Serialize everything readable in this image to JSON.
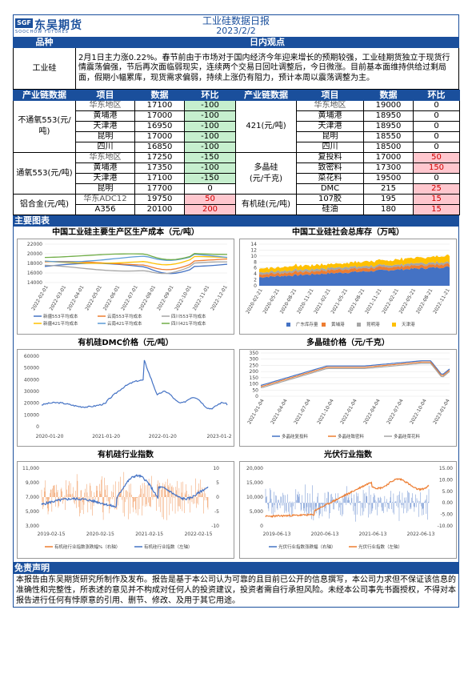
{
  "header": {
    "logo_mark": "SGF",
    "logo_cn": "东吴期货",
    "logo_en": "SOOCHOW FUTURES",
    "title": "工业硅数据日报",
    "date": "2023/2/2"
  },
  "section1": {
    "col1": "品种",
    "col2": "日内观点"
  },
  "summary": {
    "product": "工业硅",
    "text": "2月1日主力涨0.22%。春节前由于市场对于国内经济今年迎来增长的预期较强，工业硅期货独立于现货行情震荡偏强，节后再次面临弱现实，连续两个交易日回吐调整后，今日微涨。目前基本面维持供给过剩局面，假期小幅累库，现货需求偏弱，持续上涨仍有阻力，预计本周以震荡调整为主。"
  },
  "chain_header": [
    "产业链数据",
    "项目",
    "数据",
    "环比",
    "产业链数据",
    "项目",
    "数据",
    "环比"
  ],
  "left_groups": [
    {
      "name": "不通氧553(元/吨)",
      "rows": [
        {
          "item": "华东地区",
          "value": "17100",
          "change": "-100",
          "style": "green"
        },
        {
          "item": "黄埔港",
          "value": "17000",
          "change": "-100",
          "style": "green"
        },
        {
          "item": "天津港",
          "value": "16950",
          "change": "-100",
          "style": "green"
        },
        {
          "item": "昆明",
          "value": "17000",
          "change": "-100",
          "style": "green"
        },
        {
          "item": "四川",
          "value": "16850",
          "change": "-100",
          "style": "green"
        }
      ]
    },
    {
      "name": "通氧553(元/吨)",
      "rows": [
        {
          "item": "华东地区",
          "value": "17250",
          "change": "-150",
          "style": "green"
        },
        {
          "item": "黄埔港",
          "value": "17350",
          "change": "-100",
          "style": "green"
        },
        {
          "item": "天津港",
          "value": "17100",
          "change": "-150",
          "style": "green"
        },
        {
          "item": "昆明",
          "value": "17700",
          "change": "0",
          "style": ""
        }
      ]
    },
    {
      "name": "铝合金(元/吨)",
      "rows": [
        {
          "item": "华东ADC12",
          "value": "19750",
          "change": "50",
          "style": "red"
        },
        {
          "item": "A356",
          "value": "20100",
          "change": "200",
          "style": "red"
        }
      ]
    }
  ],
  "right_groups": [
    {
      "name": "421(元/吨)",
      "rows": [
        {
          "item": "华东地区",
          "value": "19000",
          "change": "0",
          "style": ""
        },
        {
          "item": "黄埔港",
          "value": "18950",
          "change": "0",
          "style": ""
        },
        {
          "item": "天津港",
          "value": "18950",
          "change": "0",
          "style": ""
        },
        {
          "item": "昆明",
          "value": "18550",
          "change": "0",
          "style": ""
        },
        {
          "item": "四川",
          "value": "18500",
          "change": "0",
          "style": ""
        }
      ]
    },
    {
      "name": "多晶硅\n(元/千克)",
      "rows": [
        {
          "item": "复投料",
          "value": "17000",
          "change": "50",
          "style": "red"
        },
        {
          "item": "致密料",
          "value": "17300",
          "change": "150",
          "style": "red"
        },
        {
          "item": "菜花料",
          "value": "19500",
          "change": "0",
          "style": ""
        },
        {
          "item": "DMC",
          "value": "215",
          "change": "25",
          "style": "red"
        }
      ]
    },
    {
      "name": "有机硅(元/吨)",
      "rows": [
        {
          "item": "107胶",
          "value": "195",
          "change": "15",
          "style": "red"
        },
        {
          "item": "硅油",
          "value": "180",
          "change": "15",
          "style": "red"
        }
      ]
    }
  ],
  "charts_section": "主要图表",
  "charts": [
    {
      "title": "中国工业硅主要生产区生产成本（元/吨）",
      "y_ticks": [
        "22000",
        "20000",
        "18000",
        "16000",
        "14000"
      ],
      "x_ticks": [
        "2022-02-01",
        "2022-03-01",
        "2022-04-01",
        "2022-05-01",
        "2022-06-01",
        "2022-07-01",
        "2022-08-01",
        "2022-09-01",
        "2022-10-01",
        "2022-11-01",
        "2022-12-01"
      ],
      "legend": [
        "新疆553平均成本",
        "云南553平均成本",
        "四川553平均成本",
        "新疆421平均成本",
        "云南421平均成本",
        "四川421平均成本"
      ],
      "colors": [
        "#4472c4",
        "#ed7d31",
        "#a5a5a5",
        "#ffc000",
        "#5b9bd5",
        "#70ad47"
      ]
    },
    {
      "title": "中国工业硅社会总库存（万吨）",
      "y_ticks": [
        "14",
        "12",
        "10",
        "8",
        "6",
        "4",
        "2",
        "0"
      ],
      "x_ticks": [
        "2020-02-21",
        "2020-05-21",
        "2020-08-21",
        "2020-11-21",
        "2021-02-21",
        "2021-05-21",
        "2021-08-21",
        "2021-11-21",
        "2022-02-21",
        "2022-05-21",
        "2022-08-21",
        "2022-11-21"
      ],
      "legend": [
        "广东库存量",
        "黄埔港",
        "昆明港",
        "天津港"
      ],
      "colors": [
        "#4472c4",
        "#ed7d31",
        "#a5a5a5",
        "#ffc000"
      ]
    },
    {
      "title": "有机硅DMC价格（元/吨）",
      "y_ticks": [
        "60000",
        "50000",
        "40000",
        "30000",
        "20000",
        "10000",
        "0"
      ],
      "x_ticks": [
        "2020-01-20",
        "2021-01-20",
        "2022-01-20",
        "2023-01-2"
      ],
      "colors": [
        "#4472c4"
      ]
    },
    {
      "title": "多晶硅价格（元/千克）",
      "y_ticks": [
        "350",
        "300",
        "250",
        "200",
        "150",
        "100",
        "50",
        "0"
      ],
      "x_ticks": [
        "2021-01-04",
        "2021-04-04",
        "2021-07-04",
        "2021-10-04",
        "2022-01-04",
        "2022-04-04",
        "2022-07-04",
        "2022-10-04",
        "2023-01-04"
      ],
      "legend": [
        "多晶硅复投料",
        "多晶硅致密料",
        "多晶硅菜花料"
      ],
      "colors": [
        "#4472c4",
        "#ed7d31",
        "#a5a5a5"
      ]
    },
    {
      "title": "有机硅行业指数",
      "y_ticks_left": [
        "11,000",
        "9,000",
        "7,000",
        "5,000",
        "3,000"
      ],
      "y_ticks_right": [
        "10",
        "5",
        "0",
        "-5",
        "-10"
      ],
      "x_ticks": [
        "2019-02-15",
        "2020-02-15",
        "2021-02-15",
        "2022-02-15"
      ],
      "legend": [
        "有机硅行业指数涨跌幅%（右轴）",
        "有机硅行业指数（左轴）"
      ],
      "colors": [
        "#ed7d31",
        "#4472c4"
      ]
    },
    {
      "title": "光伏行业指数",
      "y_ticks_left": [
        "20,000",
        "15,000",
        "10,000",
        "5,000",
        "0"
      ],
      "y_ticks_right": [
        "15.00",
        "10.00",
        "5.00",
        "0.00",
        "-5.00",
        "-10.00"
      ],
      "x_ticks": [
        "2019-06-13",
        "2020-06-13",
        "2021-06-13",
        "2022-06-13"
      ],
      "legend": [
        "光伏行业指数涨跌幅（右轴）",
        "光伏行业指数（左轴）"
      ],
      "colors": [
        "#4472c4",
        "#ed7d31"
      ]
    }
  ],
  "disclaimer": {
    "title": "免责声明",
    "text": "本报告由东吴期货研究所制作及发布。报告是基于本公司认为可靠的且目前已公开的信息撰写，本公司力求但不保证该信息的准确性和完整性，所表述的意见并不构成对任何人的投资建议，投资者需自行承担风险。未经本公司事先书面授权，不得对本报告进行任何有悖原意的引用、删节、修改、及用于其它用途。"
  }
}
